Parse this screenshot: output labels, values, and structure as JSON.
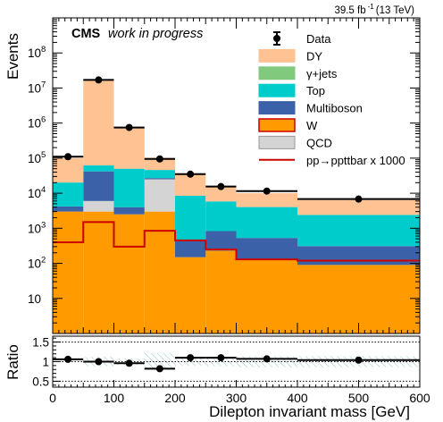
{
  "chart_data": {
    "type": "stacked-histogram",
    "header": {
      "lumi": "39.5 fb",
      "lumi_exp": "-1",
      "energy": "(13 TeV)",
      "experiment": "CMS",
      "status": "work in progress"
    },
    "xlabel": "Dilepton invariant mass [GeV]",
    "ylabel": "Events",
    "ratio_label": "Ratio",
    "xlim": [
      0,
      600
    ],
    "ylim": [
      1,
      1000000000.0
    ],
    "yscale": "log",
    "ratio_ylim": [
      0.35,
      1.65
    ],
    "x_ticks": [
      "0",
      "100",
      "200",
      "300",
      "400",
      "500",
      "600"
    ],
    "y_ticks": [
      {
        "base": "10",
        "exp": "",
        "value": 10
      },
      {
        "base": "10",
        "exp": "2",
        "value": 100
      },
      {
        "base": "10",
        "exp": "3",
        "value": 1000
      },
      {
        "base": "10",
        "exp": "4",
        "value": 10000
      },
      {
        "base": "10",
        "exp": "5",
        "value": 100000
      },
      {
        "base": "10",
        "exp": "6",
        "value": 1000000
      },
      {
        "base": "10",
        "exp": "7",
        "value": 10000000
      },
      {
        "base": "10",
        "exp": "8",
        "value": 100000000
      }
    ],
    "ratio_ticks": [
      "0.5",
      "1",
      "1.5"
    ],
    "bin_edges": [
      0,
      50,
      100,
      150,
      200,
      250,
      300,
      400,
      600
    ],
    "stack": [
      {
        "name": "W",
        "color": "#ff9b00",
        "values": [
          3000,
          3000,
          2500,
          3000,
          150,
          230,
          130,
          90
        ]
      },
      {
        "name": "QCD",
        "color": "#d4d4d4",
        "values": [
          0,
          3000,
          0,
          22000,
          0,
          0,
          0,
          0
        ]
      },
      {
        "name": "Multiboson",
        "color": "#3b62a8",
        "values": [
          1200,
          36000,
          1500,
          2000,
          300,
          600,
          400,
          220
        ]
      },
      {
        "name": "γ+jets",
        "color": "#80c97d",
        "values": [
          0,
          0,
          0,
          0,
          0,
          0,
          0,
          0
        ]
      },
      {
        "name": "Top",
        "color": "#00cccc",
        "values": [
          16000,
          20000,
          46000,
          19000,
          8000,
          5000,
          3500,
          2100
        ]
      },
      {
        "name": "DY",
        "color": "#fec293",
        "values": [
          80000,
          17000000,
          700000,
          57000,
          25000,
          9500,
          6000,
          4000
        ]
      }
    ],
    "signal": {
      "name": "pp→ppttbar x 1000",
      "color": "#cc0000",
      "values": [
        400,
        1500,
        300,
        850,
        450,
        250,
        130,
        120
      ]
    },
    "data": {
      "name": "Data",
      "values": [
        110000,
        17000000,
        750000,
        95000,
        35000,
        15500,
        11500,
        6800
      ]
    },
    "ratio": [
      1.06,
      1.0,
      0.96,
      0.82,
      1.1,
      1.1,
      1.07,
      1.04
    ],
    "legend": {
      "position": "top-right",
      "entries": [
        "Data",
        "DY",
        "γ+jets",
        "Top",
        "Multiboson",
        "W",
        "QCD",
        "pp→ppttbar x 1000"
      ]
    }
  }
}
